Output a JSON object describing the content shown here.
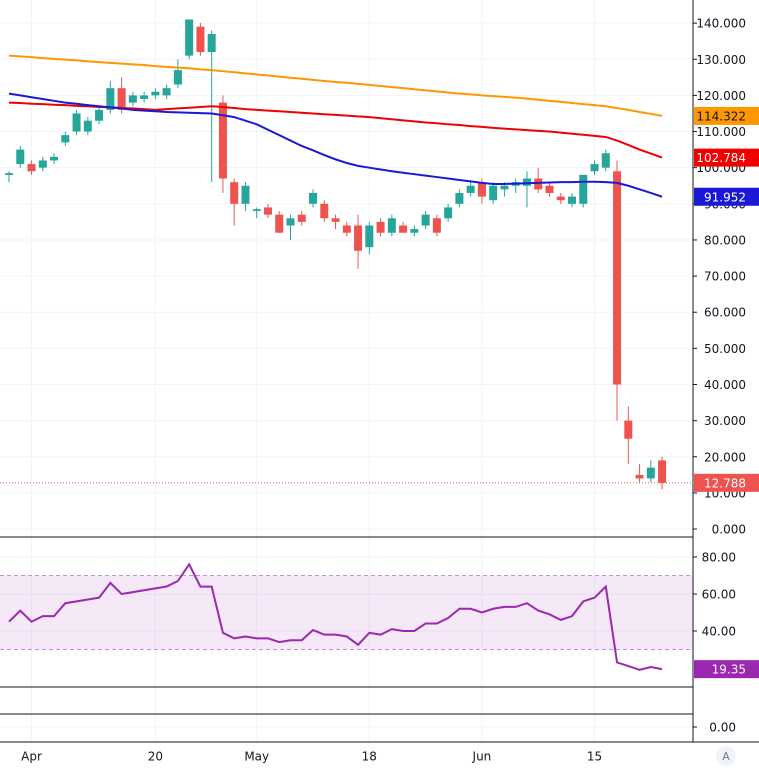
{
  "chart_data": [
    {
      "type": "candlestick",
      "categories": [
        null,
        null,
        "Apr",
        null,
        null,
        null,
        null,
        null,
        null,
        null,
        null,
        null,
        null,
        "20",
        null,
        null,
        null,
        null,
        null,
        null,
        null,
        null,
        "May",
        null,
        null,
        null,
        null,
        null,
        null,
        null,
        null,
        null,
        "18",
        null,
        null,
        null,
        null,
        null,
        null,
        null,
        null,
        null,
        "Jun",
        null,
        null,
        null,
        null,
        null,
        null,
        null,
        null,
        null,
        "15",
        null,
        null,
        null,
        null,
        null,
        null
      ],
      "open": [
        98,
        101,
        101,
        100,
        102,
        107,
        110,
        110,
        113,
        116,
        122,
        118,
        119,
        120,
        120,
        123,
        131,
        139,
        132,
        118,
        96,
        90,
        88,
        89,
        87,
        84,
        87,
        90,
        90,
        86,
        84,
        84,
        78,
        85,
        82,
        84,
        82,
        84,
        86,
        86,
        90,
        93,
        96,
        91,
        94,
        95,
        95,
        97,
        95,
        92,
        90,
        90,
        99,
        100,
        99,
        30,
        15,
        14,
        19
      ],
      "high": [
        99,
        106,
        102,
        103,
        104,
        110,
        116,
        114,
        117,
        124,
        125,
        121,
        121,
        122,
        123,
        130,
        141,
        140,
        138,
        120,
        97,
        96,
        89,
        90,
        88,
        87,
        88,
        94,
        91,
        87,
        85,
        87,
        85,
        86,
        87,
        85,
        84,
        88,
        87,
        90,
        94,
        96,
        97,
        96,
        96,
        97,
        99,
        100,
        96,
        93,
        93,
        98,
        102,
        105,
        102,
        34,
        18,
        19,
        20
      ],
      "low": [
        96,
        100,
        98,
        99,
        101,
        106,
        109,
        109,
        112,
        115,
        115,
        117,
        118,
        119,
        119,
        122,
        130,
        131,
        96,
        93,
        84,
        88,
        86,
        86,
        82,
        80,
        84,
        89,
        85,
        83,
        81,
        72,
        76,
        81,
        81,
        82,
        81,
        83,
        81,
        85,
        89,
        92,
        90,
        90,
        92,
        93,
        89,
        93,
        92,
        90,
        89,
        89,
        98,
        99,
        30,
        18,
        13,
        13,
        11
      ],
      "close": [
        98.5,
        105,
        99,
        102,
        103,
        109,
        115,
        113,
        116,
        122,
        116,
        120,
        120,
        121,
        122,
        127,
        141,
        132,
        137,
        97,
        90,
        95,
        88.5,
        87,
        82,
        86,
        85,
        93,
        86,
        85,
        82,
        77,
        84,
        82,
        86,
        82,
        83,
        87,
        82,
        89,
        93,
        95,
        92,
        95,
        95,
        96,
        97,
        94,
        93,
        91,
        92,
        98,
        101,
        104,
        40,
        25,
        14,
        17,
        12.788
      ],
      "up_color": "#26a69a",
      "down_color": "#ef5350",
      "series": [
        {
          "color": "#ff9800",
          "values": [
            131,
            130.8,
            130.6,
            130.3,
            130.1,
            129.9,
            129.7,
            129.4,
            129.2,
            129,
            128.8,
            128.6,
            128.4,
            128.1,
            127.9,
            127.7,
            127.5,
            127.2,
            127,
            126.7,
            126.4,
            126.1,
            125.8,
            125.5,
            125.2,
            124.9,
            124.6,
            124.3,
            124,
            123.7,
            123.5,
            123.2,
            122.9,
            122.6,
            122.3,
            122,
            121.7,
            121.4,
            121.1,
            120.8,
            120.5,
            120.3,
            120,
            119.8,
            119.6,
            119.4,
            119.1,
            118.8,
            118.5,
            118.2,
            117.9,
            117.6,
            117.3,
            117,
            116.5,
            116,
            115.4,
            114.9,
            114.322
          ]
        },
        {
          "color": "#f20000",
          "values": [
            118,
            117.9,
            117.7,
            117.6,
            117.4,
            117.3,
            117.1,
            117,
            116.8,
            116.7,
            116.5,
            116.4,
            116.2,
            116,
            116.2,
            116.4,
            116.6,
            116.8,
            117,
            116.8,
            116.5,
            116.2,
            116,
            115.8,
            115.6,
            115.4,
            115.2,
            115,
            114.8,
            114.6,
            114.4,
            114.2,
            114,
            113.7,
            113.4,
            113.1,
            112.8,
            112.5,
            112.3,
            112,
            111.8,
            111.5,
            111.3,
            111,
            110.8,
            110.6,
            110.4,
            110.2,
            110,
            109.7,
            109.4,
            109.1,
            108.8,
            108.5,
            107.5,
            106.3,
            105,
            103.9,
            102.784
          ]
        },
        {
          "color": "#1a1ad6",
          "values": [
            120.5,
            120,
            119.5,
            119,
            118.5,
            118,
            117.7,
            117.3,
            117,
            116.7,
            116.4,
            116,
            115.8,
            115.6,
            115.4,
            115.3,
            115.2,
            115.1,
            115,
            114.5,
            114,
            113,
            112,
            110.5,
            109,
            107.5,
            106,
            104.8,
            103.5,
            102.3,
            101.3,
            100.5,
            100,
            99.5,
            99,
            98.6,
            98.2,
            97.8,
            97.4,
            97,
            96.6,
            96.2,
            95.8,
            95.5,
            95.5,
            95.6,
            95.7,
            95.8,
            95.9,
            96,
            96,
            96.1,
            96.1,
            96,
            95.8,
            95,
            94,
            93,
            91.952
          ]
        }
      ],
      "ylim": [
        -2.2,
        146.4
      ],
      "yticks": [
        {
          "value": 0,
          "label": "0.000"
        },
        {
          "value": 10,
          "label": "10.000"
        },
        {
          "value": 20,
          "label": "20.000"
        },
        {
          "value": 30,
          "label": "30.000"
        },
        {
          "value": 40,
          "label": "40.000"
        },
        {
          "value": 50,
          "label": "50.000"
        },
        {
          "value": 60,
          "label": "60.000"
        },
        {
          "value": 70,
          "label": "70.000"
        },
        {
          "value": 80,
          "label": "80.000"
        },
        {
          "value": 90,
          "label": "90.000"
        },
        {
          "value": 100,
          "label": "100.000"
        },
        {
          "value": 110,
          "label": "110.000"
        },
        {
          "value": 120,
          "label": "120.000"
        },
        {
          "value": 130,
          "label": "130.000"
        },
        {
          "value": 140,
          "label": "140.000"
        }
      ],
      "grid": true,
      "last_price_line": true
    },
    {
      "type": "line",
      "series": [
        {
          "color": "#9c27b0",
          "values": [
            45,
            51,
            45,
            48,
            48,
            55,
            56,
            57,
            58,
            66,
            60,
            61,
            62,
            63,
            64,
            67,
            76,
            64,
            64,
            39,
            36,
            37,
            36,
            36,
            34,
            35,
            35,
            40.5,
            38,
            38,
            37,
            32.5,
            39,
            38,
            41,
            40,
            40,
            44,
            44,
            47,
            52,
            52,
            50,
            52,
            53,
            53,
            55,
            51,
            49,
            46,
            48,
            56,
            58,
            64,
            23,
            21,
            19,
            20.5,
            19.35
          ]
        }
      ],
      "band": [
        30,
        70
      ],
      "band_color": "#9c27b0",
      "ylim": [
        9.7,
        90.8
      ],
      "yticks": [
        {
          "value": 40,
          "label": "40.00"
        },
        {
          "value": 60,
          "label": "60.00"
        },
        {
          "value": 80,
          "label": "80.00"
        }
      ],
      "grid": true
    },
    {
      "type": "line",
      "series": [],
      "ylim": [
        -1.15,
        1
      ],
      "yticks": [
        {
          "value": 0,
          "label": "0.00"
        }
      ],
      "grid": true
    }
  ],
  "controls": {
    "auto": "A"
  }
}
